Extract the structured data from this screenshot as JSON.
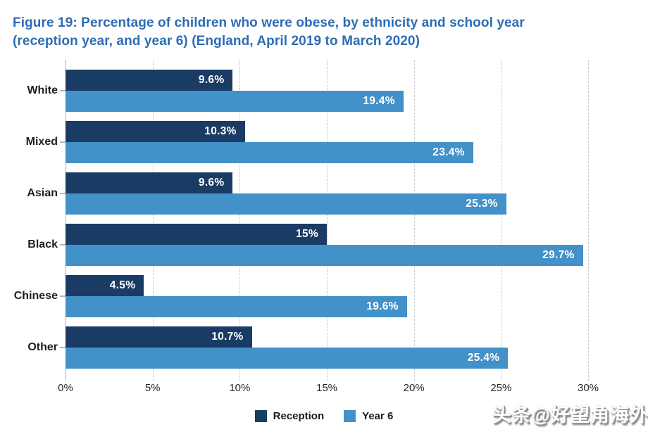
{
  "header": {
    "line1": "Figure 19: Percentage of children who were obese, by ethnicity and school year",
    "line2": "(reception year, and year 6) (England, April 2019 to March 2020)",
    "color": "#2c6cb5"
  },
  "chart_data": {
    "type": "bar",
    "orientation": "horizontal",
    "title": "Figure 19: Percentage of children who were obese, by ethnicity and school year (reception year, and year 6) (England, April 2019 to March 2020)",
    "categories": [
      "White",
      "Mixed",
      "Asian",
      "Black",
      "Chinese",
      "Other"
    ],
    "series": [
      {
        "name": "Reception",
        "color": "#1a3b64",
        "values": [
          9.6,
          10.3,
          9.6,
          15,
          4.5,
          10.7
        ],
        "value_labels": [
          "9.6%",
          "10.3%",
          "9.6%",
          "15%",
          "4.5%",
          "10.7%"
        ]
      },
      {
        "name": "Year 6",
        "color": "#4291c8",
        "values": [
          19.4,
          23.4,
          25.3,
          29.7,
          19.6,
          25.4
        ],
        "value_labels": [
          "19.4%",
          "23.4%",
          "25.3%",
          "29.7%",
          "19.6%",
          "25.4%"
        ]
      }
    ],
    "xlim": [
      0,
      30
    ],
    "x_tick_labels": [
      "0%",
      "5%",
      "10%",
      "15%",
      "20%",
      "25%",
      "30%"
    ],
    "grid": "vertical-dashed",
    "legend_position": "bottom-center",
    "value_label_position": "inside-end",
    "axis_color": "#adadad",
    "gridline_color": "#c9c9c9"
  },
  "watermark": {
    "text": "头条@好望角海外"
  }
}
